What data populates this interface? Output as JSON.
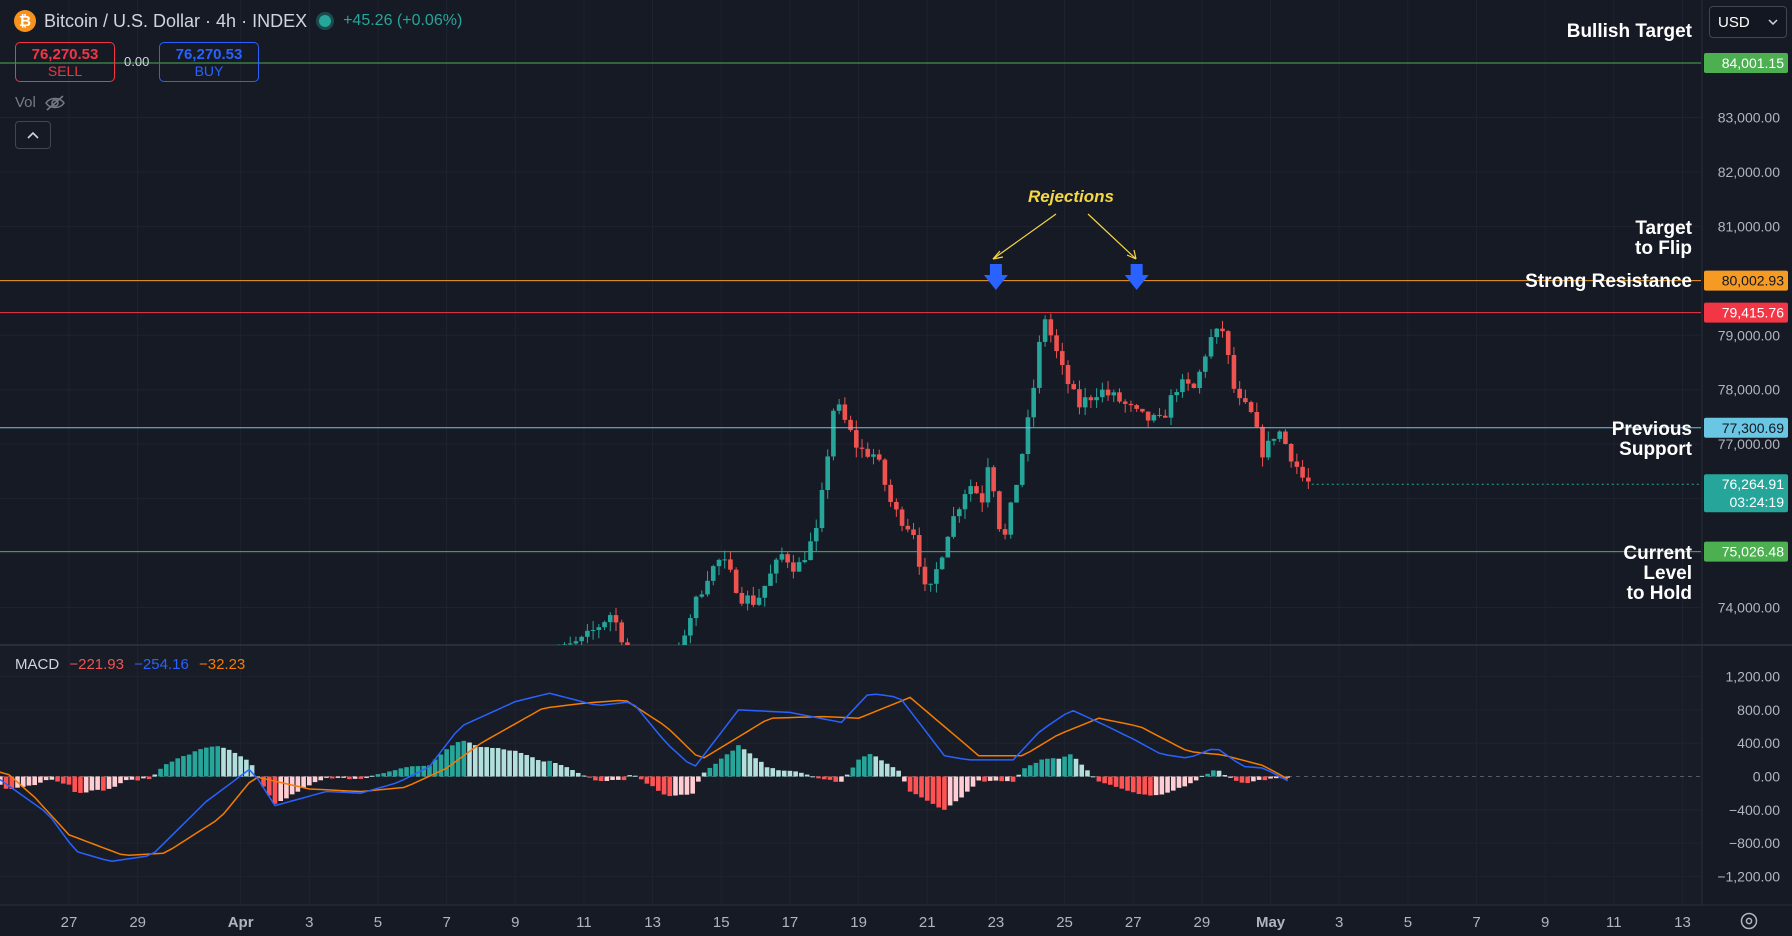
{
  "header": {
    "symbol_title": "Bitcoin / U.S. Dollar · 4h · INDEX",
    "coin_glyph": "₿",
    "change": "+45.26 (+0.06%)"
  },
  "trade": {
    "sell_price": "76,270.53",
    "sell_label": "SELL",
    "spread": "0.00",
    "buy_price": "76,270.53",
    "buy_label": "BUY"
  },
  "volume_label": "Vol",
  "macd_legend": {
    "label": "MACD",
    "macd": "−221.93",
    "signal": "−254.16",
    "hist": "−32.23"
  },
  "currency": "USD",
  "colors": {
    "bg": "#161a25",
    "up": "#26a69a",
    "down": "#ef5350",
    "macd_line": "#2962ff",
    "signal_line": "#f57c00",
    "resistance": "#f23645",
    "flip": "#f59a23",
    "prev_support": "#69c7e3",
    "support": "#4caf50",
    "annotation": "#f5d742"
  },
  "chart_data": {
    "type": "candlestick",
    "timeframe": "4h",
    "price_axis": {
      "range": [
        73000,
        84500
      ],
      "ticks": [
        "83,000.00",
        "82,000.00",
        "81,000.00",
        "79,000.00",
        "78,000.00",
        "77,000.00",
        "74,000.00"
      ]
    },
    "macd_axis": {
      "range": [
        -1300,
        1250
      ],
      "ticks": [
        "1,200.00",
        "800.00",
        "400.00",
        "0.00",
        "−400.00",
        "−800.00",
        "−1,200.00"
      ]
    },
    "x_axis": {
      "ticks": [
        {
          "label": "27",
          "day": 27
        },
        {
          "label": "29",
          "day": 29
        },
        {
          "label": "Apr",
          "day": 32
        },
        {
          "label": "3",
          "day": 34
        },
        {
          "label": "5",
          "day": 36
        },
        {
          "label": "7",
          "day": 38
        },
        {
          "label": "9",
          "day": 40
        },
        {
          "label": "11",
          "day": 42
        },
        {
          "label": "13",
          "day": 44
        },
        {
          "label": "15",
          "day": 46
        },
        {
          "label": "17",
          "day": 48
        },
        {
          "label": "19",
          "day": 50
        },
        {
          "label": "21",
          "day": 52
        },
        {
          "label": "23",
          "day": 54
        },
        {
          "label": "25",
          "day": 56
        },
        {
          "label": "27",
          "day": 58
        },
        {
          "label": "29",
          "day": 60
        },
        {
          "label": "May",
          "day": 62
        },
        {
          "label": "3",
          "day": 64
        },
        {
          "label": "5",
          "day": 66
        },
        {
          "label": "7",
          "day": 68
        },
        {
          "label": "9",
          "day": 70
        },
        {
          "label": "11",
          "day": 72
        },
        {
          "label": "13",
          "day": 74
        }
      ]
    },
    "levels": [
      {
        "price": 84001.15,
        "label": "84,001.15",
        "color": "#4caf50",
        "text": "Bullish Target"
      },
      {
        "price": 80002.93,
        "label": "80,002.93",
        "color": "#f59a23",
        "text": "Target\nto Flip"
      },
      {
        "price": 79415.76,
        "label": "79,415.76",
        "color": "#f23645",
        "text": "Strong Resistance"
      },
      {
        "price": 77300.69,
        "label": "77,300.69",
        "color": "#69c7e3",
        "text": "Previous\nSupport"
      },
      {
        "price": 75026.48,
        "label": "75,026.48",
        "color": "#4caf50",
        "text": "Current\nLevel\nto Hold"
      }
    ],
    "last_price": {
      "price": 76264.91,
      "label": "76,264.91",
      "countdown": "03:24:19"
    },
    "annotation": {
      "text": "Rejections",
      "points": [
        {
          "day": 54.0,
          "price": 79500
        },
        {
          "day": 58.1,
          "price": 79400
        }
      ]
    },
    "waypoints": [
      [
        40.6,
        73000
      ],
      [
        42.0,
        73400
      ],
      [
        42.8,
        73900
      ],
      [
        43.4,
        73050
      ],
      [
        44.6,
        72800
      ],
      [
        45.0,
        73700
      ],
      [
        45.6,
        74600
      ],
      [
        46.0,
        74900
      ],
      [
        46.6,
        74200
      ],
      [
        47.0,
        74100
      ],
      [
        47.8,
        75000
      ],
      [
        48.2,
        74700
      ],
      [
        48.8,
        75400
      ],
      [
        49.3,
        77800
      ],
      [
        50.0,
        76900
      ],
      [
        50.5,
        76800
      ],
      [
        51.0,
        75800
      ],
      [
        51.6,
        75400
      ],
      [
        52.0,
        74100
      ],
      [
        52.6,
        75400
      ],
      [
        53.2,
        76300
      ],
      [
        53.6,
        76000
      ],
      [
        53.8,
        76800
      ],
      [
        54.2,
        75100
      ],
      [
        54.6,
        76300
      ],
      [
        55.0,
        77600
      ],
      [
        55.4,
        79400
      ],
      [
        55.9,
        78400
      ],
      [
        56.4,
        77700
      ],
      [
        57.0,
        78000
      ],
      [
        57.6,
        77800
      ],
      [
        58.2,
        77500
      ],
      [
        58.8,
        77400
      ],
      [
        59.3,
        78100
      ],
      [
        59.8,
        78000
      ],
      [
        60.2,
        78900
      ],
      [
        60.6,
        79100
      ],
      [
        61.0,
        77800
      ],
      [
        61.4,
        77600
      ],
      [
        61.8,
        76800
      ],
      [
        62.2,
        77300
      ],
      [
        62.6,
        76800
      ],
      [
        63.0,
        76300
      ],
      [
        63.2,
        76270
      ]
    ],
    "macd_waypoints": [
      [
        24.0,
        40
      ],
      [
        25.0,
        -40
      ],
      [
        26.4,
        -450
      ],
      [
        27.2,
        -900
      ],
      [
        28.2,
        -1020
      ],
      [
        29.4,
        -950
      ],
      [
        31.0,
        -300
      ],
      [
        32.3,
        100
      ],
      [
        33.0,
        -350
      ],
      [
        34.5,
        -180
      ],
      [
        35.5,
        -200
      ],
      [
        36.6,
        -70
      ],
      [
        37.5,
        120
      ],
      [
        38.4,
        600
      ],
      [
        40.0,
        900
      ],
      [
        41.0,
        1000
      ],
      [
        42.4,
        850
      ],
      [
        43.4,
        900
      ],
      [
        44.4,
        400
      ],
      [
        45.2,
        100
      ],
      [
        46.5,
        800
      ],
      [
        48.0,
        770
      ],
      [
        49.5,
        650
      ],
      [
        50.3,
        1000
      ],
      [
        51.2,
        950
      ],
      [
        52.5,
        250
      ],
      [
        53.2,
        200
      ],
      [
        54.5,
        200
      ],
      [
        55.3,
        550
      ],
      [
        56.2,
        800
      ],
      [
        57.0,
        650
      ],
      [
        58.0,
        450
      ],
      [
        58.8,
        270
      ],
      [
        59.6,
        220
      ],
      [
        60.4,
        350
      ],
      [
        61.2,
        120
      ],
      [
        61.8,
        100
      ],
      [
        62.5,
        -50
      ]
    ],
    "signal_waypoints": [
      [
        24.0,
        100
      ],
      [
        25.2,
        40
      ],
      [
        26.0,
        -250
      ],
      [
        27.0,
        -700
      ],
      [
        28.6,
        -950
      ],
      [
        29.8,
        -920
      ],
      [
        31.4,
        -500
      ],
      [
        32.4,
        0
      ],
      [
        34.0,
        -150
      ],
      [
        35.5,
        -180
      ],
      [
        36.8,
        -130
      ],
      [
        38.0,
        100
      ],
      [
        39.0,
        400
      ],
      [
        40.8,
        820
      ],
      [
        42.0,
        880
      ],
      [
        43.2,
        920
      ],
      [
        44.4,
        600
      ],
      [
        45.4,
        200
      ],
      [
        46.6,
        500
      ],
      [
        47.4,
        700
      ],
      [
        49.0,
        720
      ],
      [
        50.0,
        700
      ],
      [
        51.5,
        950
      ],
      [
        52.5,
        600
      ],
      [
        53.5,
        250
      ],
      [
        54.8,
        250
      ],
      [
        55.8,
        500
      ],
      [
        57.0,
        700
      ],
      [
        58.2,
        600
      ],
      [
        59.6,
        300
      ],
      [
        60.6,
        260
      ],
      [
        61.8,
        130
      ],
      [
        62.5,
        -30
      ]
    ]
  }
}
